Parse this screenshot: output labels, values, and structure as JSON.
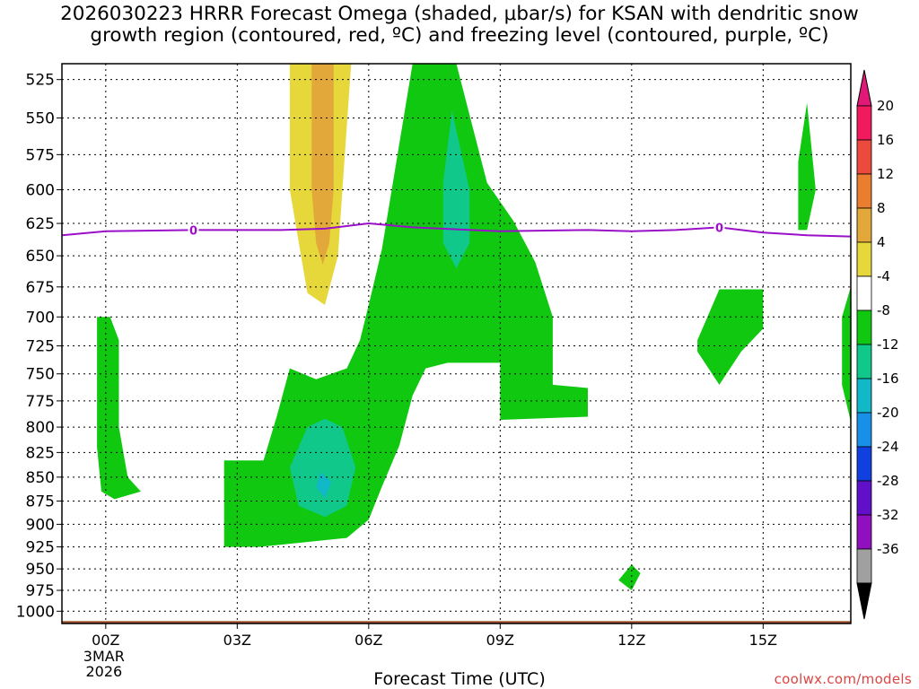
{
  "page": {
    "title_line1": "2026030223 HRRR Forecast Omega (shaded, μbar/s) for KSAN with dendritic snow",
    "title_line2": "growth region (contoured, red, ºC) and freezing level (contoured, purple, ºC)",
    "credit": "coolwx.com/models"
  },
  "chart_data": {
    "type": "contour",
    "title": "2026030223 HRRR Forecast Omega (shaded, μbar/s) for KSAN with dendritic snow growth region (contoured, red, ºC) and freezing level (contoured, purple, ºC)",
    "xlabel": "Forecast Time (UTC)",
    "ylabel": "",
    "x_ticks": [
      {
        "hour": 0,
        "label": "00Z"
      },
      {
        "hour": 3,
        "label": "03Z"
      },
      {
        "hour": 6,
        "label": "06Z"
      },
      {
        "hour": 9,
        "label": "09Z"
      },
      {
        "hour": 12,
        "label": "12Z"
      },
      {
        "hour": 15,
        "label": "15Z"
      }
    ],
    "x_date_label": [
      "3MAR",
      "2026"
    ],
    "xlim": [
      -1,
      17
    ],
    "y_levels": [
      525,
      550,
      575,
      600,
      625,
      650,
      675,
      700,
      725,
      750,
      775,
      800,
      825,
      850,
      875,
      900,
      925,
      950,
      975,
      1000
    ],
    "ylim": [
      1015,
      515
    ],
    "y_scale": "log",
    "colorbar": {
      "labels": [
        "20",
        "16",
        "12",
        "8",
        "4",
        "-4",
        "-8",
        "-12",
        "-16",
        "-20",
        "-24",
        "-28",
        "-32",
        "-36"
      ],
      "colors": [
        "#f21a5e",
        "#ec4a3c",
        "#ea7d2e",
        "#e2a93a",
        "#e6d83a",
        "#ffffff",
        "#10c810",
        "#10c88a",
        "#10b8c8",
        "#1890e8",
        "#1040e0",
        "#6010c8",
        "#9010c0",
        "#a0a0a0"
      ],
      "top_arrow": "#e01878",
      "bottom_arrow": "#000000"
    },
    "omega_regions": [
      {
        "level": -4,
        "color": "#10c810",
        "points": [
          [
            7.0,
            515
          ],
          [
            8.0,
            515
          ],
          [
            8.7,
            595
          ],
          [
            9.3,
            623
          ],
          [
            9.8,
            655
          ],
          [
            10.2,
            700
          ],
          [
            10.2,
            760
          ],
          [
            11.0,
            763
          ],
          [
            11.0,
            790
          ],
          [
            9.0,
            793
          ],
          [
            9.0,
            740
          ],
          [
            8.3,
            740
          ],
          [
            7.8,
            740
          ],
          [
            7.3,
            745
          ],
          [
            7.0,
            770
          ],
          [
            6.7,
            818
          ],
          [
            6.3,
            860
          ],
          [
            6.0,
            895
          ],
          [
            5.5,
            915
          ],
          [
            4.5,
            920
          ],
          [
            3.5,
            925
          ],
          [
            3.0,
            925
          ],
          [
            2.7,
            925
          ],
          [
            2.7,
            833
          ],
          [
            3.0,
            833
          ],
          [
            3.6,
            833
          ],
          [
            3.9,
            790
          ],
          [
            4.2,
            745
          ],
          [
            4.8,
            755
          ],
          [
            5.5,
            745
          ],
          [
            5.8,
            720
          ],
          [
            6.0,
            690
          ],
          [
            6.3,
            645
          ]
        ]
      },
      {
        "level": -4,
        "color": "#10c810",
        "points": [
          [
            -0.2,
            700
          ],
          [
            0.1,
            700
          ],
          [
            0.3,
            720
          ],
          [
            0.3,
            800
          ],
          [
            0.5,
            850
          ],
          [
            0.8,
            865
          ],
          [
            0.2,
            873
          ],
          [
            -0.1,
            865
          ],
          [
            -0.2,
            820
          ],
          [
            -0.2,
            720
          ]
        ]
      },
      {
        "level": -4,
        "color": "#10c810",
        "points": [
          [
            15.8,
            580
          ],
          [
            16.0,
            540
          ],
          [
            16.2,
            600
          ],
          [
            16.0,
            630
          ],
          [
            15.8,
            630
          ]
        ]
      },
      {
        "level": -4,
        "color": "#10c810",
        "points": [
          [
            14.0,
            677
          ],
          [
            15.0,
            677
          ],
          [
            15.0,
            710
          ],
          [
            14.5,
            730
          ],
          [
            14.0,
            760
          ],
          [
            13.5,
            730
          ],
          [
            13.5,
            720
          ]
        ]
      },
      {
        "level": -4,
        "color": "#10c810",
        "points": [
          [
            16.8,
            700
          ],
          [
            17.0,
            675
          ],
          [
            17.0,
            795
          ],
          [
            16.8,
            760
          ],
          [
            16.8,
            730
          ]
        ]
      },
      {
        "level": -4,
        "color": "#10c810",
        "points": [
          [
            12.0,
            945
          ],
          [
            12.2,
            955
          ],
          [
            12.0,
            975
          ],
          [
            11.7,
            963
          ]
        ]
      },
      {
        "level": -8,
        "color": "#10c88a",
        "points": [
          [
            5.0,
            792
          ],
          [
            5.4,
            800
          ],
          [
            5.7,
            840
          ],
          [
            5.5,
            880
          ],
          [
            5.0,
            892
          ],
          [
            4.4,
            880
          ],
          [
            4.2,
            840
          ],
          [
            4.6,
            800
          ]
        ]
      },
      {
        "level": -8,
        "color": "#10c88a",
        "points": [
          [
            7.9,
            545
          ],
          [
            8.3,
            600
          ],
          [
            8.3,
            640
          ],
          [
            8.0,
            660
          ],
          [
            7.7,
            640
          ],
          [
            7.7,
            595
          ]
        ]
      },
      {
        "level": -12,
        "color": "#10b8c8",
        "points": [
          [
            4.9,
            845
          ],
          [
            5.15,
            855
          ],
          [
            5.0,
            872
          ],
          [
            4.8,
            860
          ]
        ]
      },
      {
        "level": 4,
        "color": "#e6d83a",
        "points": [
          [
            4.2,
            515
          ],
          [
            5.6,
            515
          ],
          [
            5.4,
            600
          ],
          [
            5.3,
            650
          ],
          [
            5.0,
            690
          ],
          [
            4.6,
            680
          ],
          [
            4.2,
            600
          ]
        ]
      },
      {
        "level": 8,
        "color": "#e2a93a",
        "points": [
          [
            4.7,
            515
          ],
          [
            5.2,
            515
          ],
          [
            5.2,
            600
          ],
          [
            5.1,
            640
          ],
          [
            4.95,
            657
          ],
          [
            4.8,
            640
          ],
          [
            4.7,
            600
          ]
        ]
      }
    ],
    "freezing_level": {
      "contour_label": "0",
      "color": "#9a10c8",
      "points": [
        [
          -1,
          634
        ],
        [
          0,
          631
        ],
        [
          2,
          630
        ],
        [
          4,
          630
        ],
        [
          5,
          629
        ],
        [
          6,
          625
        ],
        [
          7,
          628
        ],
        [
          9,
          631
        ],
        [
          11,
          630
        ],
        [
          12,
          631
        ],
        [
          13,
          630
        ],
        [
          14,
          628
        ],
        [
          15,
          632
        ],
        [
          16,
          634
        ],
        [
          17,
          635
        ]
      ],
      "label_hours": [
        2,
        14
      ]
    },
    "terrain": {
      "color": "#a0522d",
      "top_hpa": 1012
    }
  }
}
